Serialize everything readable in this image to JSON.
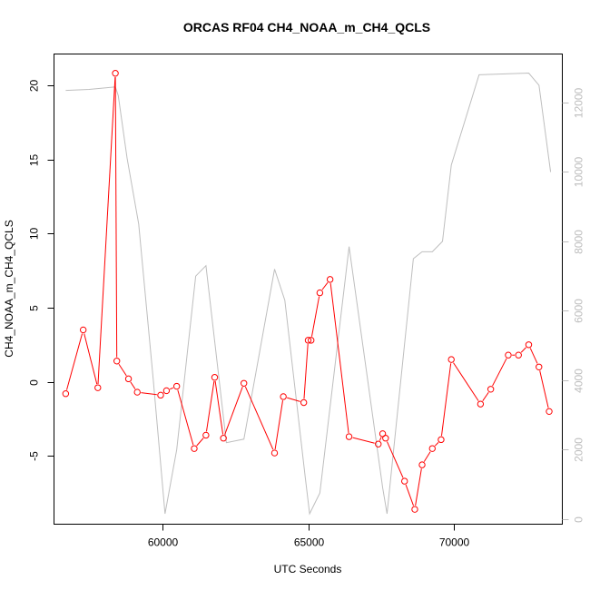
{
  "chart_data": {
    "type": "line",
    "title": "ORCAS RF04 CH4_NOAA_m_CH4_QCLS",
    "xlabel": "UTC Seconds",
    "ylabel": "CH4_NOAA_m_CH4_QCLS",
    "xlim": [
      56300,
      73700
    ],
    "ylim": [
      -9.6,
      22.1
    ],
    "y2lim": [
      -150,
      13400
    ],
    "x_ticks": [
      60000,
      65000,
      70000
    ],
    "y_ticks": [
      -5,
      0,
      5,
      10,
      15,
      20
    ],
    "y2_ticks": [
      0,
      2000,
      4000,
      6000,
      8000,
      10000,
      12000
    ],
    "x_tick_labels": [
      "60000",
      "65000",
      "70000"
    ],
    "y_tick_labels": [
      "-5",
      "0",
      "5",
      "10",
      "15",
      "20"
    ],
    "y2_tick_labels": [
      "0",
      "2000",
      "4000",
      "6000",
      "8000",
      "10000",
      "12000"
    ],
    "grid": false,
    "series": [
      {
        "color": "#ff0000",
        "axis": "left",
        "markers": true,
        "x": [
          56700,
          57300,
          57800,
          58400,
          58450,
          58850,
          59150,
          59950,
          60150,
          60500,
          61100,
          61500,
          61800,
          62100,
          62800,
          63850,
          64150,
          64850,
          65000,
          65100,
          65400,
          65750,
          66400,
          67400,
          67550,
          67650,
          68300,
          68650,
          68900,
          69250,
          69550,
          69900,
          70900,
          71250,
          71850,
          72200,
          72550,
          72900,
          73250
        ],
        "y": [
          -0.8,
          3.5,
          -0.4,
          20.8,
          1.4,
          0.2,
          -0.7,
          -0.9,
          -0.6,
          -0.3,
          -4.5,
          -3.6,
          0.3,
          -3.8,
          -0.1,
          -4.8,
          -1.0,
          -1.4,
          2.8,
          2.8,
          6.0,
          6.9,
          -3.7,
          -4.2,
          -3.5,
          -3.8,
          -6.7,
          -8.6,
          -5.6,
          -4.5,
          -3.9,
          1.5,
          -1.5,
          -0.5,
          1.8,
          1.8,
          2.5,
          1.0,
          -2.0
        ]
      },
      {
        "color": "#bebebe",
        "axis": "right",
        "markers": false,
        "x": [
          56700,
          57500,
          58400,
          58500,
          58800,
          59200,
          59700,
          60100,
          60500,
          61150,
          61500,
          62200,
          62800,
          63850,
          64200,
          64900,
          65050,
          65400,
          66400,
          67550,
          67700,
          68600,
          68900,
          69250,
          69600,
          69900,
          70850,
          72550,
          72900,
          73300
        ],
        "y": [
          12350,
          12380,
          12450,
          12200,
          10400,
          8500,
          4000,
          150,
          2000,
          7000,
          7300,
          2200,
          2300,
          7200,
          6300,
          1200,
          150,
          750,
          7850,
          900,
          150,
          7500,
          7700,
          7700,
          8000,
          10200,
          12800,
          12850,
          12500,
          10000
        ]
      }
    ]
  }
}
